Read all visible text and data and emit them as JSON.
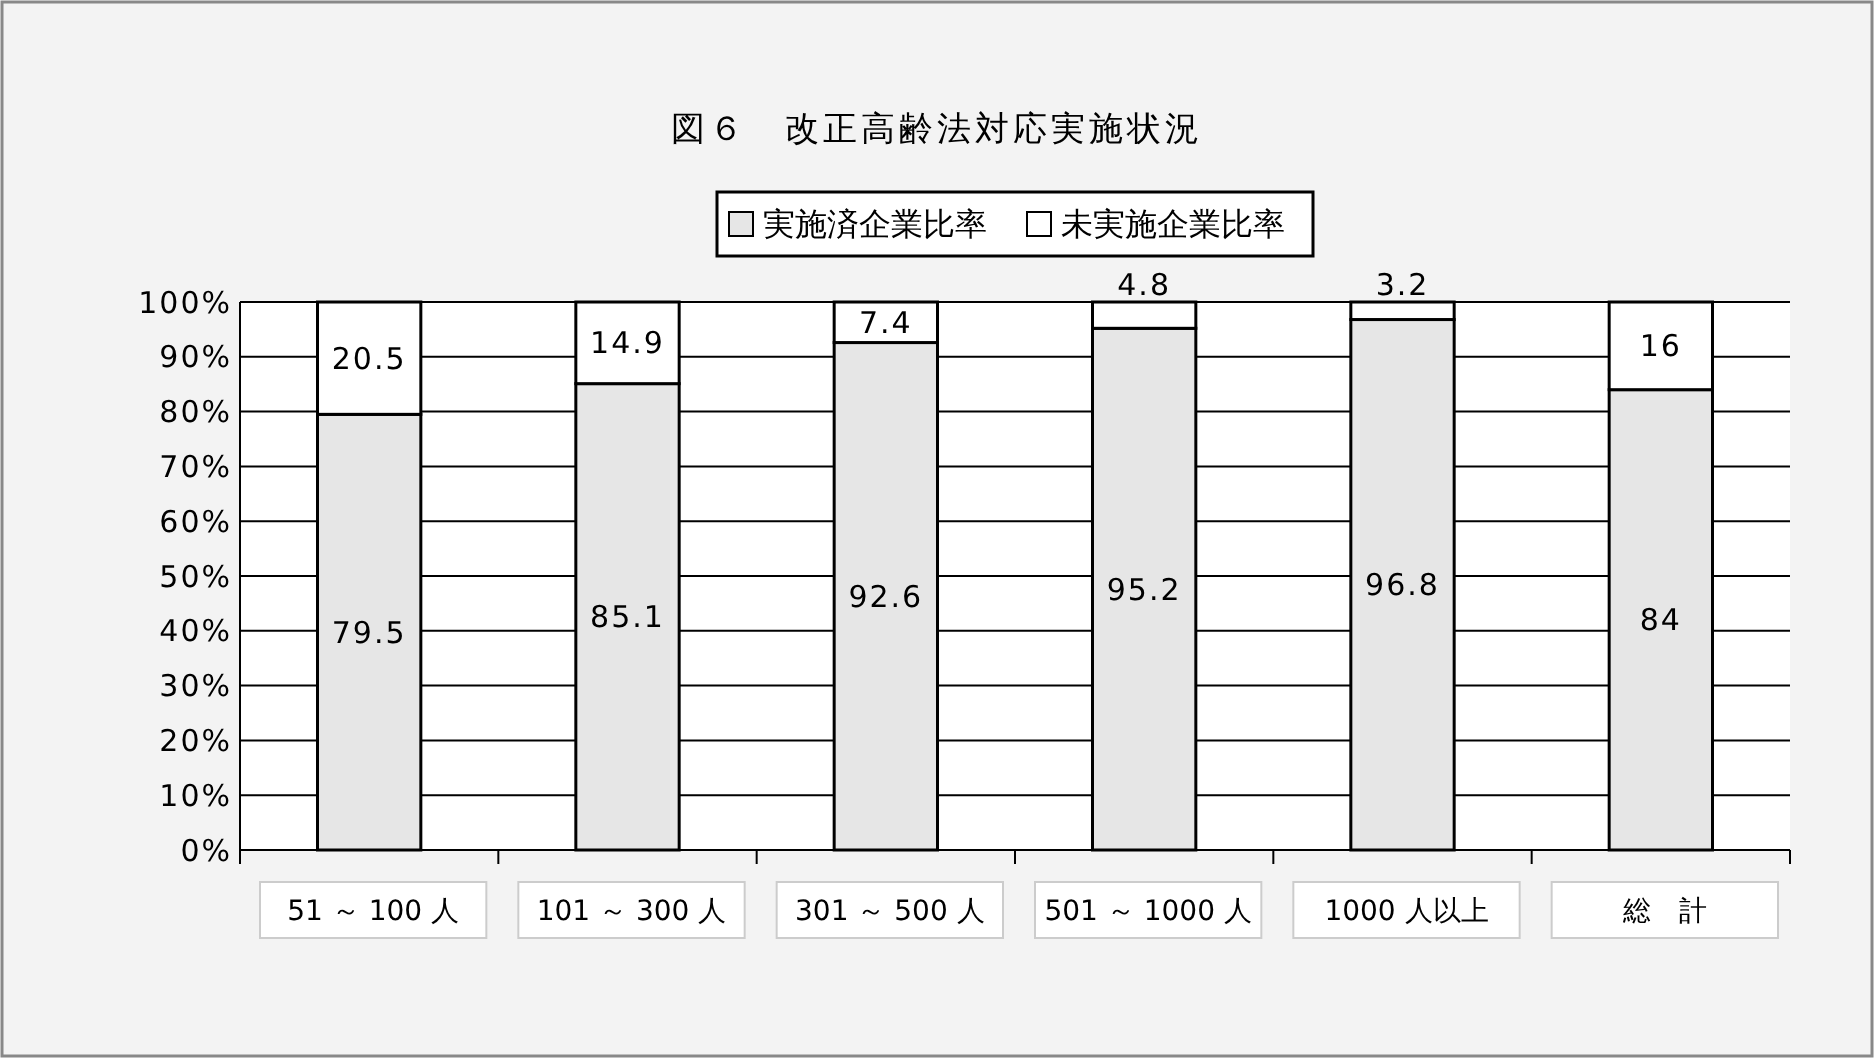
{
  "chart_data": {
    "type": "bar",
    "title": "図６　改正高齢法対応実施状況",
    "categories": [
      "51 ～ 100 人",
      "101 ～ 300 人",
      "301 ～ 500 人",
      "501 ～ 1000 人",
      "1000 人以上",
      "総　計"
    ],
    "series": [
      {
        "name": "実施済企業比率",
        "color": "#e6e6e6",
        "values": [
          79.5,
          85.1,
          92.6,
          95.2,
          96.8,
          84
        ]
      },
      {
        "name": "未実施企業比率",
        "color": "#ffffff",
        "values": [
          20.5,
          14.9,
          7.4,
          4.8,
          3.2,
          16
        ]
      }
    ],
    "stacked": true,
    "data_labels": true,
    "grid": "y",
    "legend": "top",
    "ylim": [
      0,
      100
    ],
    "yticks": [
      {
        "value": 0,
        "label": "0%"
      },
      {
        "value": 10,
        "label": "10%"
      },
      {
        "value": 20,
        "label": "20%"
      },
      {
        "value": 30,
        "label": "30%"
      },
      {
        "value": 40,
        "label": "40%"
      },
      {
        "value": 50,
        "label": "50%"
      },
      {
        "value": 60,
        "label": "60%"
      },
      {
        "value": 70,
        "label": "70%"
      },
      {
        "value": 80,
        "label": "80%"
      },
      {
        "value": 90,
        "label": "90%"
      },
      {
        "value": 100,
        "label": "100%"
      }
    ]
  }
}
